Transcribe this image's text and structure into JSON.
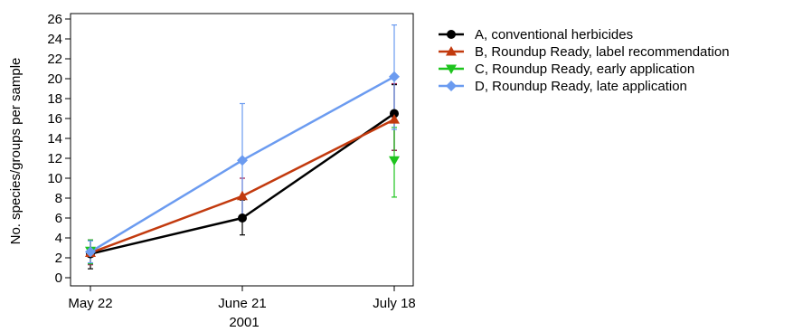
{
  "chart_data": {
    "type": "line",
    "xlabel": "2001",
    "ylabel": "No. species/groups per sample",
    "categories": [
      "May 22",
      "June 21",
      "July 18"
    ],
    "ylim": [
      0,
      26
    ],
    "yticks": [
      0,
      2,
      4,
      6,
      8,
      10,
      12,
      14,
      16,
      18,
      20,
      22,
      24,
      26
    ],
    "grid": false,
    "legend_position": "right",
    "series": [
      {
        "name": "A, conventional herbicides",
        "color": "#000000",
        "marker": "circle",
        "values": [
          2.4,
          6.0,
          16.5
        ],
        "err_low": [
          0.9,
          4.3,
          12.8
        ],
        "err_high": [
          3.8,
          7.8,
          19.4
        ],
        "error_color": "#000000"
      },
      {
        "name": "B, Roundup Ready, label recommendation",
        "color": "#c23a0e",
        "marker": "triangle-up",
        "values": [
          2.5,
          8.2,
          15.9
        ],
        "err_low": [
          1.3,
          6.3,
          12.8
        ],
        "err_high": [
          3.8,
          10.0,
          19.5
        ],
        "error_color": "#9b1c4e"
      },
      {
        "name": "C, Roundup Ready, early application",
        "color": "#1ec41e",
        "marker": "triangle-down",
        "values": [
          2.7,
          null,
          11.8
        ],
        "err_low": [
          1.4,
          null,
          8.1
        ],
        "err_high": [
          3.8,
          null,
          15.1
        ],
        "error_color": "#1ec41e"
      },
      {
        "name": "D, Roundup Ready, late application",
        "color": "#6b9bf0",
        "marker": "diamond",
        "values": [
          2.6,
          11.8,
          20.2
        ],
        "err_low": [
          1.5,
          6.2,
          14.9
        ],
        "err_high": [
          3.7,
          17.5,
          25.4
        ],
        "error_color": "#6b9bf0"
      }
    ]
  }
}
